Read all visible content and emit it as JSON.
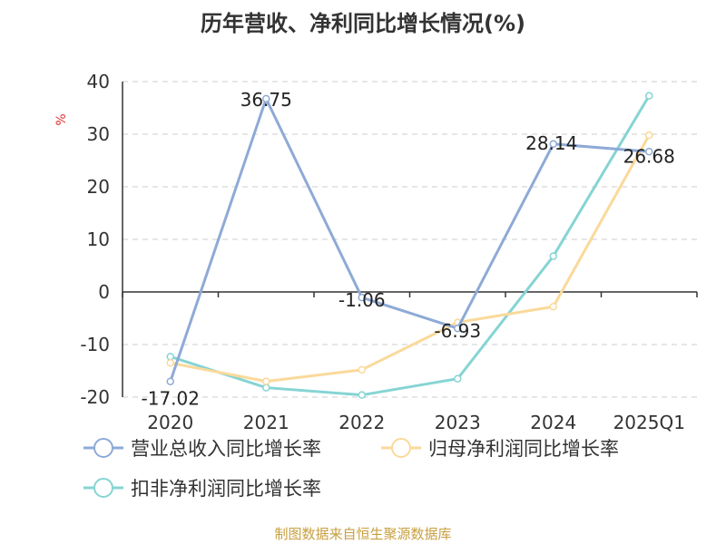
{
  "title": "历年营收、净利同比增长情况(%)",
  "source": "制图数据来自恒生聚源数据库",
  "colors": {
    "source_text": "#c8a040",
    "unit_text": "#e03030",
    "axis": "#333333",
    "grid": "#cccccc"
  },
  "chart_data": {
    "type": "line",
    "title": "历年营收、净利同比增长情况(%)",
    "ylabel": "%",
    "ylim": [
      -20,
      40
    ],
    "yticks": [
      -20,
      -10,
      0,
      10,
      20,
      30,
      40
    ],
    "grid": "horizontal dashed",
    "legend_position": "bottom",
    "categories": [
      "2020",
      "2021",
      "2022",
      "2023",
      "2024",
      "2025Q1"
    ],
    "series": [
      {
        "name": "营业总收入同比增长率",
        "color": "#8eaad6",
        "values": [
          -17.02,
          36.75,
          -1.06,
          -6.93,
          28.14,
          26.68
        ],
        "labels": [
          "-17.02",
          "36.75",
          "-1.06",
          "-6.93",
          "28.14",
          "26.68"
        ]
      },
      {
        "name": "归母净利润同比增长率",
        "color": "#fad99a",
        "values": [
          -13.5,
          -17.0,
          -14.8,
          -5.8,
          -2.8,
          29.8
        ]
      },
      {
        "name": "扣非净利润同比增长率",
        "color": "#86d4d4",
        "values": [
          -12.3,
          -18.2,
          -19.6,
          -16.5,
          6.8,
          37.3
        ]
      }
    ]
  }
}
